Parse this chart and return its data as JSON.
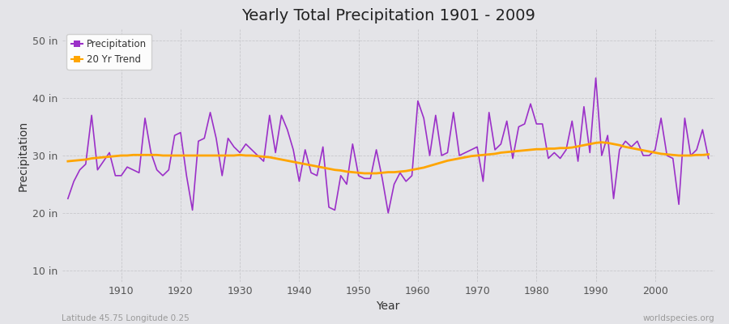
{
  "title": "Yearly Total Precipitation 1901 - 2009",
  "xlabel": "Year",
  "ylabel": "Precipitation",
  "lat_lon_label": "Latitude 45.75 Longitude 0.25",
  "source_label": "worldspecies.org",
  "ylim": [
    8,
    52
  ],
  "yticks": [
    10,
    20,
    30,
    40,
    50
  ],
  "ytick_labels": [
    "10 in",
    "20 in",
    "30 in",
    "40 in",
    "50 in"
  ],
  "xlim": [
    1900,
    2010
  ],
  "xticks": [
    1910,
    1920,
    1930,
    1940,
    1950,
    1960,
    1970,
    1980,
    1990,
    2000
  ],
  "precipitation_color": "#9B30C8",
  "trend_color": "#FFA500",
  "bg_color": "#E4E4E8",
  "plot_bg_color": "#E4E4E8",
  "grid_color": "#C8C8CC",
  "legend_items": [
    "Precipitation",
    "20 Yr Trend"
  ],
  "years": [
    1901,
    1902,
    1903,
    1904,
    1905,
    1906,
    1907,
    1908,
    1909,
    1910,
    1911,
    1912,
    1913,
    1914,
    1915,
    1916,
    1917,
    1918,
    1919,
    1920,
    1921,
    1922,
    1923,
    1924,
    1925,
    1926,
    1927,
    1928,
    1929,
    1930,
    1931,
    1932,
    1933,
    1934,
    1935,
    1936,
    1937,
    1938,
    1939,
    1940,
    1941,
    1942,
    1943,
    1944,
    1945,
    1946,
    1947,
    1948,
    1949,
    1950,
    1951,
    1952,
    1953,
    1954,
    1955,
    1956,
    1957,
    1958,
    1959,
    1960,
    1961,
    1962,
    1963,
    1964,
    1965,
    1966,
    1967,
    1968,
    1969,
    1970,
    1971,
    1972,
    1973,
    1974,
    1975,
    1976,
    1977,
    1978,
    1979,
    1980,
    1981,
    1982,
    1983,
    1984,
    1985,
    1986,
    1987,
    1988,
    1989,
    1990,
    1991,
    1992,
    1993,
    1994,
    1995,
    1996,
    1997,
    1998,
    1999,
    2000,
    2001,
    2002,
    2003,
    2004,
    2005,
    2006,
    2007,
    2008,
    2009
  ],
  "precip": [
    22.5,
    25.5,
    27.5,
    28.5,
    37.0,
    27.5,
    29.0,
    30.5,
    26.5,
    26.5,
    28.0,
    27.5,
    27.0,
    36.5,
    30.5,
    27.5,
    26.5,
    27.5,
    33.5,
    34.0,
    26.5,
    20.5,
    32.5,
    33.0,
    37.5,
    33.0,
    26.5,
    33.0,
    31.5,
    30.5,
    32.0,
    31.0,
    30.0,
    29.0,
    37.0,
    30.5,
    37.0,
    34.5,
    31.0,
    25.5,
    31.0,
    27.0,
    26.5,
    31.5,
    21.0,
    20.5,
    26.5,
    25.0,
    32.0,
    26.5,
    26.0,
    26.0,
    31.0,
    26.0,
    20.0,
    25.0,
    27.0,
    25.5,
    26.5,
    39.5,
    36.5,
    30.0,
    37.0,
    30.0,
    30.5,
    37.5,
    30.0,
    30.5,
    31.0,
    31.5,
    25.5,
    37.5,
    31.0,
    32.0,
    36.0,
    29.5,
    35.0,
    35.5,
    39.0,
    35.5,
    35.5,
    29.5,
    30.5,
    29.5,
    31.0,
    36.0,
    29.0,
    38.5,
    30.5,
    43.5,
    30.0,
    33.5,
    22.5,
    31.0,
    32.5,
    31.5,
    32.5,
    30.0,
    30.0,
    31.0,
    36.5,
    30.0,
    29.5,
    21.5,
    36.5,
    30.0,
    31.0,
    34.5,
    29.5
  ],
  "trend": [
    29.0,
    29.1,
    29.2,
    29.3,
    29.5,
    29.6,
    29.7,
    29.8,
    29.9,
    30.0,
    30.0,
    30.1,
    30.1,
    30.1,
    30.1,
    30.1,
    30.0,
    30.0,
    30.0,
    30.0,
    30.0,
    30.0,
    30.0,
    30.0,
    30.0,
    30.0,
    30.0,
    30.0,
    30.0,
    30.1,
    30.0,
    30.0,
    29.9,
    29.8,
    29.7,
    29.5,
    29.3,
    29.1,
    28.9,
    28.7,
    28.5,
    28.3,
    28.1,
    27.9,
    27.7,
    27.5,
    27.4,
    27.2,
    27.1,
    27.0,
    26.9,
    26.9,
    26.9,
    27.0,
    27.1,
    27.1,
    27.2,
    27.3,
    27.5,
    27.7,
    27.9,
    28.2,
    28.5,
    28.8,
    29.1,
    29.3,
    29.5,
    29.7,
    29.9,
    30.0,
    30.1,
    30.2,
    30.3,
    30.5,
    30.6,
    30.7,
    30.8,
    30.9,
    31.0,
    31.1,
    31.1,
    31.2,
    31.2,
    31.3,
    31.3,
    31.4,
    31.6,
    31.8,
    32.0,
    32.2,
    32.3,
    32.2,
    32.0,
    31.8,
    31.5,
    31.3,
    31.1,
    30.9,
    30.7,
    30.5,
    30.3,
    30.2,
    30.1,
    30.0,
    30.0,
    30.0,
    30.1,
    30.1,
    30.2
  ]
}
